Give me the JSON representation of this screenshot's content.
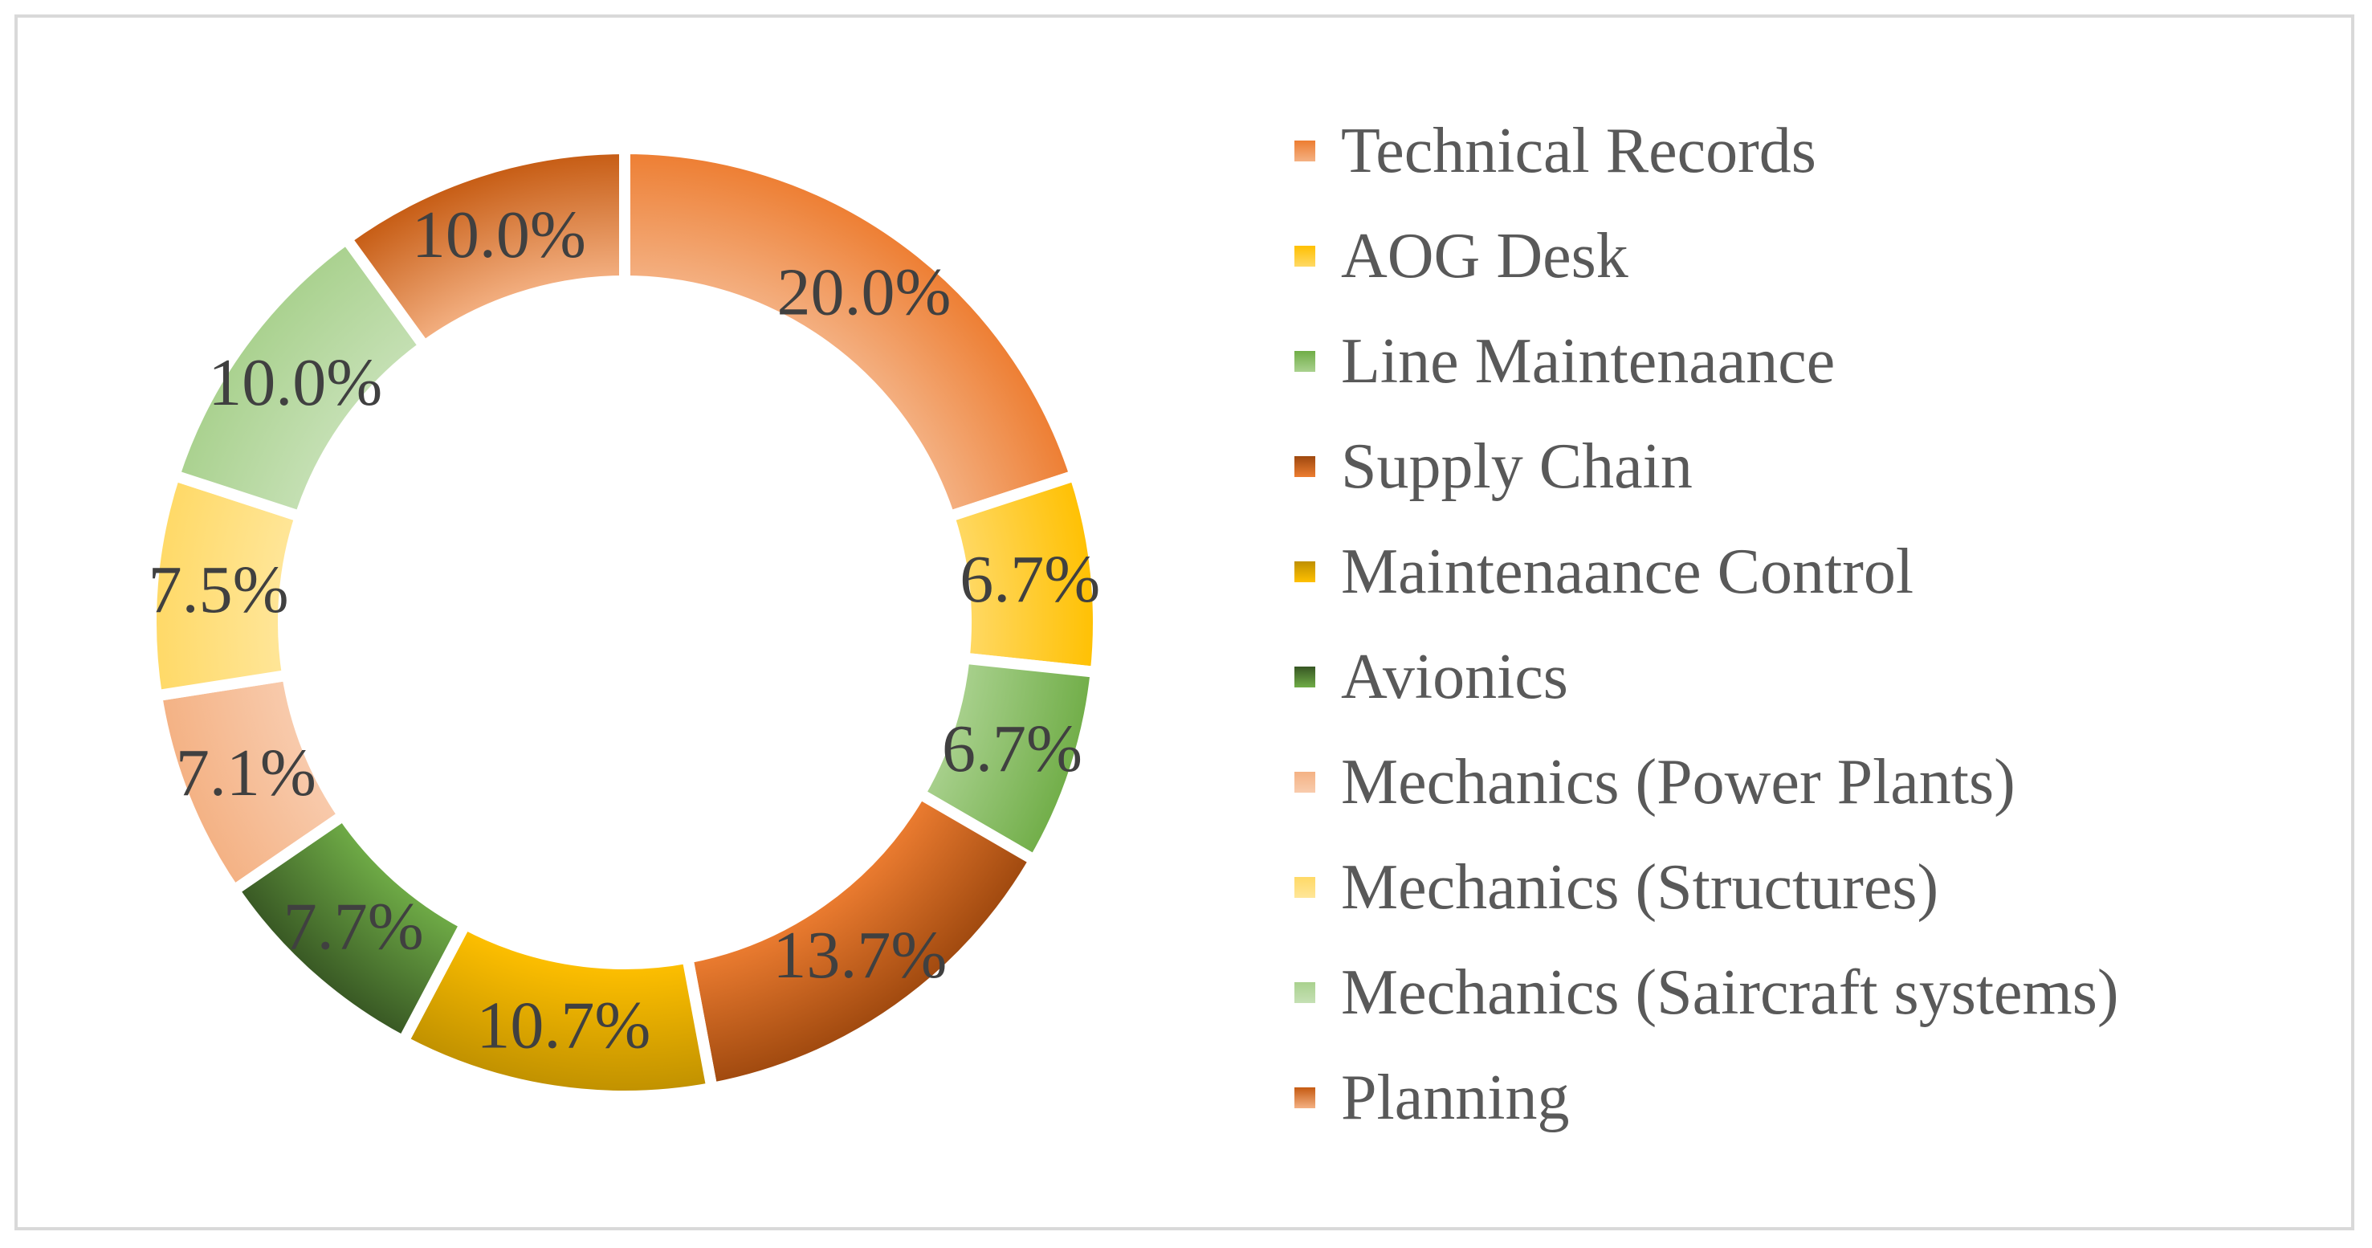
{
  "chart_data": {
    "type": "pie",
    "variant": "doughnut",
    "title": "",
    "categories": [
      "Technical Records",
      "AOG Desk",
      "Line Maintenaance",
      "Supply Chain",
      "Maintenaance Control",
      "Avionics",
      "Mechanics (Power Plants)",
      "Mechanics (Structures)",
      "Mechanics (Saircraft systems)",
      "Planning"
    ],
    "values": [
      20.0,
      6.7,
      6.7,
      13.7,
      10.7,
      7.7,
      7.1,
      7.5,
      10.0,
      10.0
    ],
    "value_labels": [
      "20.0%",
      "6.7%",
      "6.7%",
      "13.7%",
      "10.7%",
      "7.7%",
      "7.1%",
      "7.5%",
      "10.0%",
      "10.0%"
    ],
    "colors": [
      [
        "#ED7D31",
        "#F4B183"
      ],
      [
        "#FFC000",
        "#FFD966"
      ],
      [
        "#70AD47",
        "#A9D18E"
      ],
      [
        "#9E480E",
        "#ED7D31"
      ],
      [
        "#BF9000",
        "#FFC000"
      ],
      [
        "#375623",
        "#70AD47"
      ],
      [
        "#F4B183",
        "#F8CBAD"
      ],
      [
        "#FFD966",
        "#FFE699"
      ],
      [
        "#A9D18E",
        "#C5E0B4"
      ],
      [
        "#C55A11",
        "#F4B183"
      ]
    ],
    "legend": {
      "position": "right",
      "entries": [
        "Technical Records",
        "AOG Desk",
        "Line Maintenaance",
        "Supply Chain",
        "Maintenaance Control",
        "Avionics",
        "Mechanics (Power Plants)",
        "Mechanics (Structures)",
        "Mechanics (Saircraft systems)",
        "Planning"
      ]
    },
    "start_angle_degrees": 0,
    "direction": "clockwise"
  }
}
